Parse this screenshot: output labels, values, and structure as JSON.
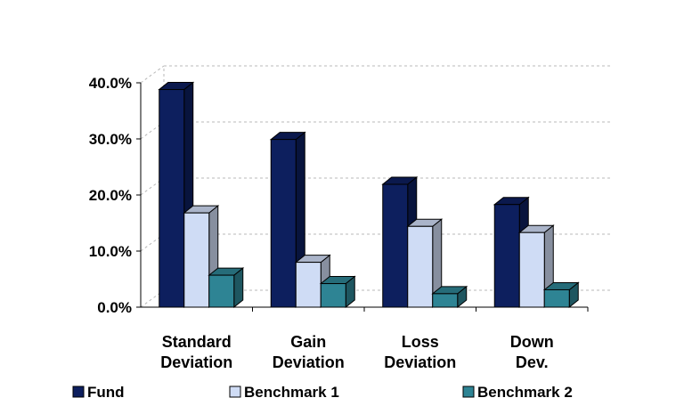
{
  "chart_data": {
    "type": "bar",
    "categories": [
      [
        "Standard",
        "Deviation"
      ],
      [
        "Gain",
        "Deviation"
      ],
      [
        "Loss",
        "Deviation"
      ],
      [
        "Down",
        "Dev."
      ]
    ],
    "series": [
      {
        "name": "Fund",
        "values": [
          38.8,
          29.9,
          21.9,
          18.3
        ],
        "color": "#0d1f5e"
      },
      {
        "name": "Benchmark 1",
        "values": [
          16.8,
          8.0,
          14.4,
          13.3
        ],
        "color": "#cfdcf5"
      },
      {
        "name": "Benchmark 2",
        "values": [
          5.7,
          4.2,
          2.4,
          3.1
        ],
        "color": "#2e8494"
      }
    ],
    "y_ticks": [
      "0.0%",
      "10.0%",
      "20.0%",
      "30.0%",
      "40.0%"
    ],
    "ylim": [
      0,
      40
    ],
    "grid": "dashed horizontal",
    "legend_position": "bottom",
    "style": "3d-clustered"
  }
}
